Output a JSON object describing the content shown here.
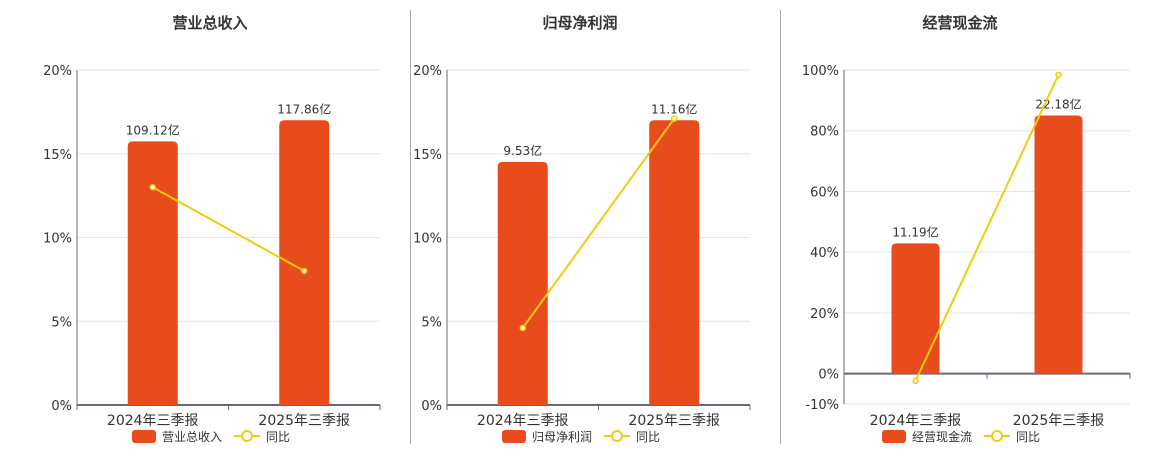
{
  "colors": {
    "bar": "#e84c1c",
    "line": "#f2cc0c",
    "grid": "#e3e6ef",
    "axis": "#666a78",
    "text": "#333333"
  },
  "chart_data": [
    {
      "type": "bar+line",
      "title": "营业总收入",
      "categories": [
        "2024年三季报",
        "2025年三季报"
      ],
      "bar_series": {
        "name": "营业总收入",
        "values": [
          109.12,
          117.86
        ],
        "labels": [
          "109.12亿",
          "117.86亿"
        ]
      },
      "line_series": {
        "name": "同比",
        "values": [
          13.0,
          8.0
        ]
      },
      "yaxis": {
        "ticks": [
          0,
          5,
          10,
          15,
          20
        ],
        "tick_labels": [
          "0%",
          "5%",
          "10%",
          "15%",
          "20%"
        ],
        "ylim": [
          0,
          20
        ]
      },
      "grid": true,
      "legend": "bottom"
    },
    {
      "type": "bar+line",
      "title": "归母净利润",
      "categories": [
        "2024年三季报",
        "2025年三季报"
      ],
      "bar_series": {
        "name": "归母净利润",
        "values": [
          9.53,
          11.16
        ],
        "labels": [
          "9.53亿",
          "11.16亿"
        ]
      },
      "line_series": {
        "name": "同比",
        "values": [
          4.6,
          17.1
        ]
      },
      "yaxis": {
        "ticks": [
          0,
          5,
          10,
          15,
          20
        ],
        "tick_labels": [
          "0%",
          "5%",
          "10%",
          "15%",
          "20%"
        ],
        "ylim": [
          0,
          20
        ]
      },
      "grid": true,
      "legend": "bottom"
    },
    {
      "type": "bar+line",
      "title": "经营现金流",
      "categories": [
        "2024年三季报",
        "2025年三季报"
      ],
      "bar_series": {
        "name": "经营现金流",
        "values": [
          11.19,
          22.18
        ],
        "labels": [
          "11.19亿",
          "22.18亿"
        ]
      },
      "line_series": {
        "name": "同比",
        "values": [
          -2.4,
          98.4
        ]
      },
      "yaxis": {
        "ticks": [
          -10,
          0,
          20,
          40,
          60,
          80,
          100
        ],
        "tick_labels": [
          "-10%",
          "0%",
          "20%",
          "40%",
          "60%",
          "80%",
          "100%"
        ],
        "ylim": [
          -10,
          100
        ]
      },
      "grid": true,
      "legend": "bottom"
    }
  ]
}
